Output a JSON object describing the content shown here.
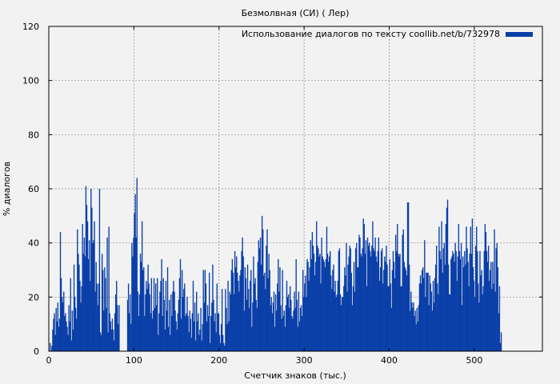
{
  "chart_data": {
    "type": "bar",
    "title": "Безмолвная (СИ) ( Лер)",
    "xlabel": "Счетчик знаков (тыс.)",
    "ylabel": "% диалогов",
    "xlim": [
      0,
      580
    ],
    "ylim": [
      0,
      120
    ],
    "xticks": [
      "0",
      "100",
      "200",
      "300",
      "400",
      "500"
    ],
    "yticks": [
      "0",
      "20",
      "40",
      "60",
      "80",
      "100",
      "120"
    ],
    "grid": true,
    "legend_position": "top-right",
    "bar_color": "#0a3fa8",
    "series": [
      {
        "name": "Использование диалогов по тексту coollib.net/b/732978",
        "x_start": 0,
        "x_step": 1,
        "values": [
          0,
          3,
          0,
          2,
          8,
          12,
          14,
          6,
          16,
          11,
          18,
          9,
          12,
          44,
          27,
          20,
          18,
          22,
          13,
          14,
          11,
          9,
          6,
          17,
          11,
          27,
          4,
          15,
          8,
          32,
          20,
          16,
          12,
          45,
          36,
          32,
          26,
          18,
          24,
          47,
          36,
          42,
          35,
          61,
          54,
          48,
          34,
          41,
          26,
          60,
          53,
          40,
          41,
          48,
          22,
          33,
          25,
          17,
          25,
          60,
          7,
          6,
          36,
          30,
          15,
          31,
          27,
          16,
          42,
          7,
          46,
          14,
          11,
          8,
          12,
          8,
          4,
          14,
          21,
          26,
          17,
          10,
          17,
          0,
          0,
          0,
          0,
          0,
          0,
          0,
          0,
          0,
          19,
          25,
          14,
          21,
          10,
          40,
          35,
          42,
          51,
          58,
          42,
          64,
          22,
          13,
          21,
          36,
          33,
          48,
          30,
          31,
          13,
          21,
          26,
          23,
          32,
          25,
          21,
          14,
          27,
          12,
          15,
          27,
          16,
          25,
          17,
          27,
          6,
          14,
          22,
          26,
          34,
          13,
          27,
          19,
          8,
          26,
          15,
          31,
          9,
          19,
          6,
          21,
          13,
          22,
          26,
          22,
          15,
          11,
          8,
          14,
          19,
          27,
          34,
          12,
          30,
          20,
          23,
          25,
          13,
          14,
          20,
          13,
          7,
          15,
          12,
          5,
          14,
          26,
          11,
          18,
          4,
          22,
          11,
          14,
          6,
          8,
          16,
          4,
          10,
          30,
          18,
          30,
          25,
          11,
          17,
          13,
          29,
          3,
          13,
          18,
          32,
          19,
          11,
          14,
          7,
          25,
          14,
          14,
          6,
          3,
          10,
          23,
          6,
          3,
          2,
          23,
          16,
          10,
          26,
          11,
          22,
          21,
          30,
          34,
          29,
          21,
          37,
          31,
          35,
          29,
          26,
          22,
          28,
          30,
          37,
          42,
          35,
          15,
          31,
          27,
          19,
          32,
          23,
          16,
          26,
          30,
          9,
          18,
          35,
          25,
          27,
          19,
          16,
          33,
          41,
          38,
          42,
          32,
          50,
          45,
          28,
          29,
          23,
          39,
          45,
          27,
          36,
          30,
          17,
          20,
          14,
          18,
          22,
          9,
          21,
          15,
          25,
          34,
          22,
          31,
          17,
          12,
          30,
          13,
          15,
          9,
          17,
          26,
          20,
          21,
          16,
          24,
          19,
          13,
          12,
          15,
          22,
          16,
          34,
          19,
          9,
          22,
          11,
          16,
          17,
          13,
          30,
          20,
          25,
          28,
          20,
          34,
          33,
          26,
          31,
          41,
          34,
          44,
          39,
          36,
          28,
          33,
          48,
          39,
          38,
          35,
          36,
          25,
          42,
          35,
          34,
          33,
          31,
          34,
          46,
          36,
          33,
          35,
          37,
          28,
          23,
          30,
          32,
          22,
          26,
          20,
          21,
          26,
          37,
          38,
          21,
          17,
          20,
          20,
          24,
          31,
          28,
          40,
          22,
          32,
          35,
          39,
          38,
          29,
          17,
          24,
          33,
          22,
          38,
          40,
          31,
          31,
          43,
          42,
          36,
          35,
          38,
          49,
          47,
          36,
          41,
          24,
          42,
          39,
          40,
          37,
          35,
          39,
          48,
          38,
          37,
          42,
          35,
          33,
          37,
          42,
          26,
          31,
          37,
          38,
          25,
          30,
          35,
          33,
          39,
          32,
          24,
          24,
          34,
          25,
          16,
          30,
          37,
          33,
          27,
          43,
          37,
          47,
          36,
          35,
          36,
          24,
          24,
          43,
          45,
          33,
          31,
          30,
          28,
          55,
          55,
          32,
          15,
          22,
          18,
          16,
          18,
          13,
          15,
          10,
          16,
          11,
          17,
          25,
          28,
          25,
          30,
          31,
          27,
          41,
          20,
          29,
          29,
          29,
          17,
          28,
          25,
          22,
          15,
          26,
          18,
          27,
          32,
          39,
          25,
          21,
          46,
          37,
          34,
          48,
          29,
          38,
          40,
          32,
          47,
          53,
          56,
          32,
          21,
          21,
          34,
          35,
          37,
          36,
          33,
          40,
          37,
          26,
          35,
          47,
          37,
          34,
          40,
          17,
          35,
          31,
          37,
          32,
          46,
          38,
          33,
          24,
          36,
          46,
          36,
          49,
          31,
          26,
          20,
          39,
          46,
          37,
          25,
          18,
          37,
          28,
          30,
          21,
          24,
          37,
          47,
          44,
          37,
          33,
          39,
          26,
          30,
          33,
          23,
          33,
          25,
          45,
          22,
          38,
          40,
          31,
          14,
          24,
          3,
          7
        ]
      }
    ]
  }
}
